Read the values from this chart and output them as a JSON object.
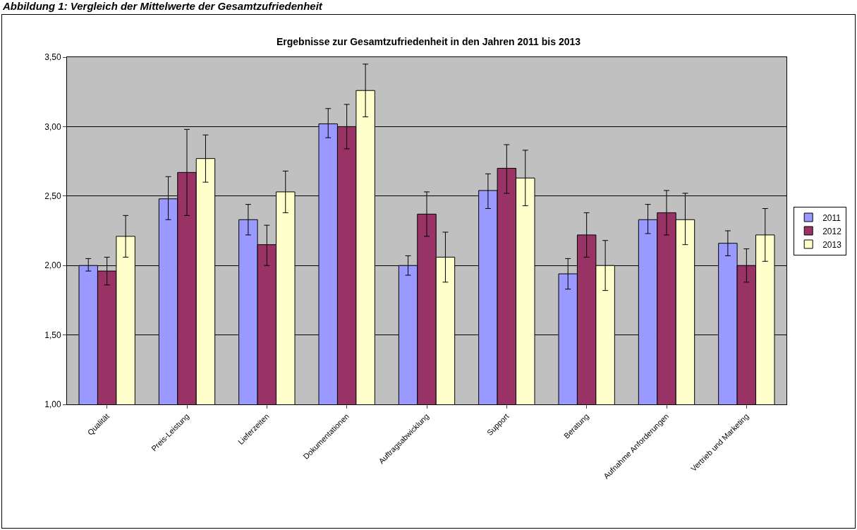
{
  "chart_data": {
    "type": "bar",
    "title": "Ergebnisse zur Gesamtzufriedenheit in den Jahren 2011 bis 2013",
    "annotations": [
      "Abbildung 1: Vergleich der Mittelwerte der Gesamtzufriedenheit"
    ],
    "categories": [
      "Qualität",
      "Preis-Leistung",
      "Lieferzeiten",
      "Dokumentationen",
      "Auftragsabwicklung",
      "Support",
      "Beratung",
      "Aufnahme Anforderungen",
      "Vertrieb und Marketing"
    ],
    "series": [
      {
        "name": "2011",
        "color": "#9999ff",
        "values": [
          2.0,
          2.48,
          2.33,
          3.02,
          2.0,
          2.54,
          1.94,
          2.33,
          2.16
        ],
        "errors": [
          [
            1.96,
            2.05
          ],
          [
            2.33,
            2.64
          ],
          [
            2.22,
            2.44
          ],
          [
            2.92,
            3.13
          ],
          [
            1.93,
            2.07
          ],
          [
            2.41,
            2.66
          ],
          [
            1.83,
            2.05
          ],
          [
            2.23,
            2.44
          ],
          [
            2.07,
            2.25
          ]
        ]
      },
      {
        "name": "2012",
        "color": "#993366",
        "values": [
          1.96,
          2.67,
          2.15,
          3.0,
          2.37,
          2.7,
          2.22,
          2.38,
          2.0
        ],
        "errors": [
          [
            1.86,
            2.06
          ],
          [
            2.36,
            2.98
          ],
          [
            2.0,
            2.29
          ],
          [
            2.84,
            3.16
          ],
          [
            2.21,
            2.53
          ],
          [
            2.52,
            2.87
          ],
          [
            2.06,
            2.38
          ],
          [
            2.22,
            2.54
          ],
          [
            1.88,
            2.12
          ]
        ]
      },
      {
        "name": "2013",
        "color": "#ffffcc",
        "values": [
          2.21,
          2.77,
          2.53,
          3.26,
          2.06,
          2.63,
          2.0,
          2.33,
          2.22
        ],
        "errors": [
          [
            2.06,
            2.36
          ],
          [
            2.6,
            2.94
          ],
          [
            2.38,
            2.68
          ],
          [
            3.07,
            3.45
          ],
          [
            1.88,
            2.24
          ],
          [
            2.43,
            2.83
          ],
          [
            1.82,
            2.18
          ],
          [
            2.15,
            2.52
          ],
          [
            2.03,
            2.41
          ]
        ]
      }
    ],
    "ylim": [
      1,
      3.5
    ],
    "yticks": [
      {
        "value": 1,
        "label": "1,00"
      },
      {
        "value": 1.5,
        "label": "1,50"
      },
      {
        "value": 2,
        "label": "2,00"
      },
      {
        "value": 2.5,
        "label": "2,50"
      },
      {
        "value": 3,
        "label": "3,00"
      },
      {
        "value": 3.5,
        "label": "3,50"
      }
    ],
    "grid": "y",
    "legend": "right"
  }
}
